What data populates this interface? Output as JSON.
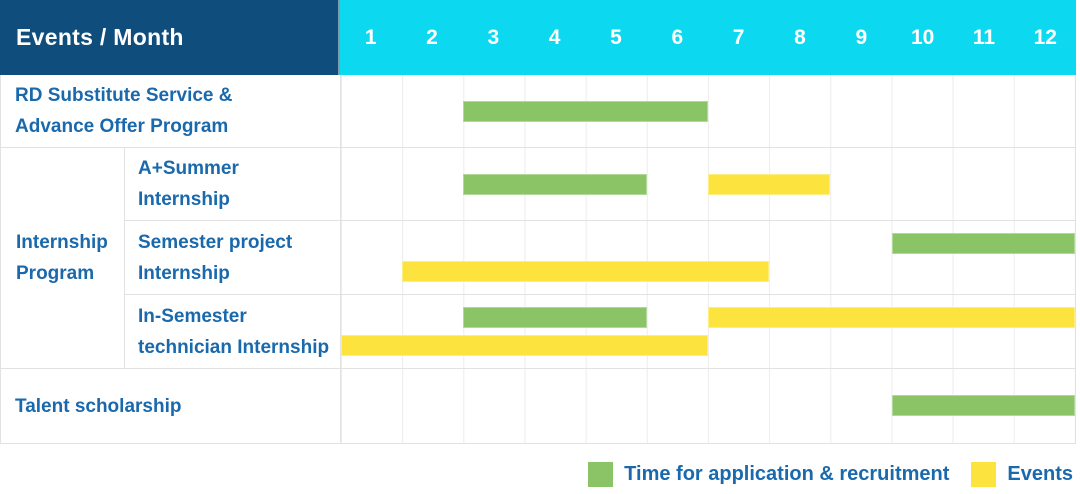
{
  "chart_data": {
    "type": "bar",
    "subtype": "gantt",
    "title": "Events / Month",
    "x_axis": {
      "unit": "month",
      "range": [
        1,
        12
      ],
      "ticks": [
        "1",
        "2",
        "3",
        "4",
        "5",
        "6",
        "7",
        "8",
        "9",
        "10",
        "11",
        "12"
      ]
    },
    "legend": [
      {
        "key": "green",
        "label": "Time for application & recruitment",
        "color": "#8ac466"
      },
      {
        "key": "yellow",
        "label": "Events",
        "color": "#fde33d"
      }
    ],
    "groups": [
      {
        "label": "Internship Program",
        "label_lines": [
          "Internship",
          "Program"
        ],
        "row_indexes": [
          1,
          2,
          3
        ]
      }
    ],
    "rows": [
      {
        "label": "RD Substitute Service & Advance Offer Program",
        "label_lines": [
          "RD Substitute Service &",
          "Advance Offer Program"
        ],
        "bars": [
          {
            "series": "green",
            "start_month": 3,
            "end_month": 6,
            "line": "middle"
          }
        ]
      },
      {
        "label": "A+Summer Internship",
        "label_lines": [
          "A+Summer",
          "Internship"
        ],
        "bars": [
          {
            "series": "green",
            "start_month": 3,
            "end_month": 5,
            "line": "middle"
          },
          {
            "series": "yellow",
            "start_month": 7,
            "end_month": 8,
            "line": "middle"
          }
        ]
      },
      {
        "label": "Semester project Internship",
        "label_lines": [
          "Semester project",
          "Internship"
        ],
        "bars": [
          {
            "series": "green",
            "start_month": 10,
            "end_month": 12,
            "line": "upper"
          },
          {
            "series": "yellow",
            "start_month": 2,
            "end_month": 7,
            "line": "lower"
          }
        ]
      },
      {
        "label": "In-Semester technician Internship",
        "label_lines": [
          "In-Semester",
          "technician Internship"
        ],
        "bars": [
          {
            "series": "green",
            "start_month": 3,
            "end_month": 5,
            "line": "upper"
          },
          {
            "series": "yellow",
            "start_month": 7,
            "end_month": 12,
            "line": "upper"
          },
          {
            "series": "yellow",
            "start_month": 1,
            "end_month": 6,
            "line": "lower"
          }
        ]
      },
      {
        "label": "Talent scholarship",
        "label_lines": [
          "Talent scholarship"
        ],
        "bars": [
          {
            "series": "green",
            "start_month": 10,
            "end_month": 12,
            "line": "middle"
          }
        ]
      }
    ]
  },
  "colors": {
    "header_bg": "#0f4d7d",
    "month_band_bg": "#0cd8f0",
    "label_text": "#1a69ac",
    "grid_line": "#ececec",
    "bar_green": "#8ac466",
    "bar_yellow": "#fde33d"
  }
}
